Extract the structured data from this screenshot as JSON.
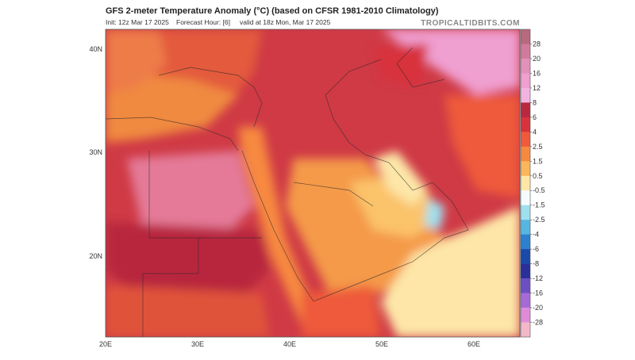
{
  "header": {
    "title": "GFS 2-meter Temperature Anomaly (°C) (based on CFSR 1981-2010 Climatology)",
    "init": "Init: 12z Mar 17 2025",
    "forecast_hour": "Forecast Hour: [6]",
    "valid": "valid at 18z Mon, Mar 17 2025",
    "site": "TROPICALTIDBITS.COM"
  },
  "map": {
    "lat_labels": [
      "40N",
      "30N",
      "20N"
    ],
    "lon_labels": [
      "20E",
      "30E",
      "40E",
      "50E",
      "60E"
    ]
  },
  "colorbar": {
    "ticks": [
      28,
      20,
      16,
      12,
      8,
      6,
      4,
      2.5,
      1.5,
      0.5,
      -0.5,
      -1.5,
      -2.5,
      -4,
      -6,
      -8,
      -12,
      -16,
      -20,
      -28
    ],
    "colors": [
      "#b8697e",
      "#d27a9c",
      "#e390bb",
      "#ef9fd0",
      "#f3b3e0",
      "#b8283e",
      "#d8333c",
      "#ee5a3a",
      "#f7893f",
      "#fbb65a",
      "#fde6a8",
      "#f5fbfb",
      "#9fe0ef",
      "#56b6e2",
      "#2f7fcf",
      "#1b4aa8",
      "#2a2f9a",
      "#6c4fc0",
      "#a66ad6",
      "#e08bda",
      "#f3b8c8"
    ]
  }
}
